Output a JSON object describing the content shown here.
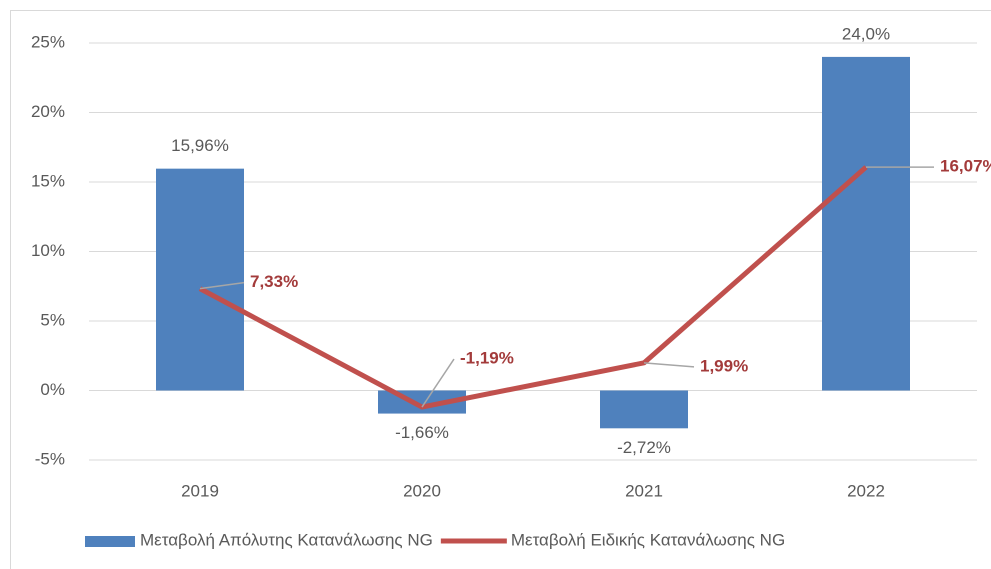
{
  "chart_data": {
    "type": "combo",
    "categories": [
      "2019",
      "2020",
      "2021",
      "2022"
    ],
    "series": [
      {
        "name": "Μεταβολή Απόλυτης Κατανάλωσης NG",
        "type": "bar",
        "color": "#4f81bd",
        "values": [
          15.96,
          -1.66,
          -2.72,
          24.0
        ],
        "value_labels": [
          "15,96%",
          "-1,66%",
          "-2,72%",
          "24,0%"
        ]
      },
      {
        "name": "Μεταβολή Ειδικής Κατανάλωσης NG",
        "type": "line",
        "color": "#c0504d",
        "values": [
          7.33,
          -1.19,
          1.99,
          16.07
        ],
        "value_labels": [
          "7,33%",
          "-1,19%",
          "1,99%",
          "16,07%"
        ]
      }
    ],
    "ylim": [
      -5,
      25
    ],
    "yticks": [
      {
        "value": -5,
        "label": "-5%"
      },
      {
        "value": 0,
        "label": "0%"
      },
      {
        "value": 5,
        "label": "5%"
      },
      {
        "value": 10,
        "label": "10%"
      },
      {
        "value": 15,
        "label": "15%"
      },
      {
        "value": 20,
        "label": "20%"
      },
      {
        "value": 25,
        "label": "25%"
      }
    ],
    "grid": true,
    "legend": "bottom"
  }
}
